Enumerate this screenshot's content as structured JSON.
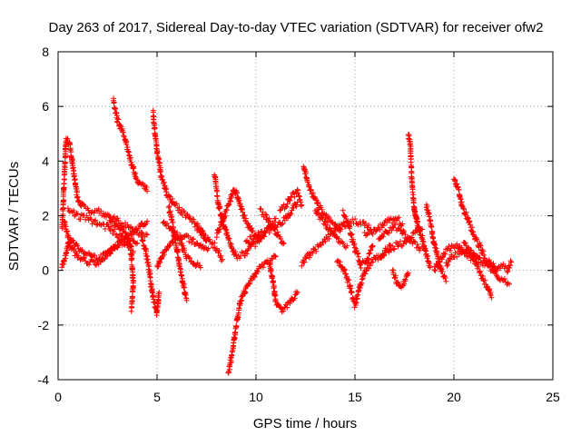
{
  "chart_data": {
    "type": "scatter",
    "title": "Day 263 of 2017, Sidereal Day-to-day VTEC variation (SDTVAR) for receiver ofw2",
    "xlabel": "GPS time / hours",
    "ylabel": "SDTVAR / TECUs",
    "xlim": [
      0,
      25
    ],
    "ylim": [
      -4,
      8
    ],
    "xticks": [
      "0",
      "5",
      "10",
      "15",
      "20",
      "25"
    ],
    "yticks": [
      "-4",
      "-2",
      "0",
      "2",
      "4",
      "6",
      "8"
    ],
    "grid": true,
    "marker": "+",
    "color": "#ff0000",
    "tracks": [
      [
        [
          0.2,
          1.6
        ],
        [
          0.4,
          4.8
        ],
        [
          0.6,
          4.6
        ],
        [
          0.8,
          3.5
        ],
        [
          1.0,
          2.6
        ],
        [
          1.3,
          2.3
        ],
        [
          1.6,
          2.2
        ],
        [
          2.0,
          2.2
        ],
        [
          2.5,
          2.0
        ],
        [
          3.0,
          1.8
        ],
        [
          3.5,
          1.6
        ],
        [
          4.0,
          1.4
        ],
        [
          4.5,
          1.3
        ]
      ],
      [
        [
          0.2,
          0.1
        ],
        [
          0.4,
          0.6
        ],
        [
          0.6,
          1.2
        ],
        [
          0.8,
          1.0
        ],
        [
          1.2,
          0.7
        ],
        [
          1.6,
          0.6
        ],
        [
          2.0,
          0.4
        ],
        [
          2.5,
          0.6
        ],
        [
          3.0,
          0.9
        ],
        [
          3.5,
          1.2
        ],
        [
          4.0,
          1.5
        ],
        [
          4.5,
          1.8
        ]
      ],
      [
        [
          0.3,
          1.8
        ],
        [
          0.6,
          0.9
        ],
        [
          1.0,
          0.5
        ],
        [
          1.5,
          0.3
        ],
        [
          2.0,
          0.3
        ],
        [
          2.5,
          0.6
        ],
        [
          3.0,
          1.0
        ],
        [
          3.5,
          1.0
        ],
        [
          3.8,
          0.7
        ]
      ],
      [
        [
          0.5,
          2.2
        ],
        [
          1.0,
          2.0
        ],
        [
          1.5,
          1.9
        ],
        [
          2.0,
          1.7
        ],
        [
          2.5,
          1.6
        ],
        [
          3.0,
          1.3
        ],
        [
          3.5,
          1.2
        ],
        [
          4.0,
          1.0
        ]
      ],
      [
        [
          2.8,
          6.2
        ],
        [
          3.0,
          5.5
        ],
        [
          3.3,
          5.0
        ],
        [
          3.6,
          4.2
        ],
        [
          3.9,
          3.5
        ],
        [
          4.1,
          3.2
        ],
        [
          4.4,
          3.0
        ],
        [
          4.5,
          2.9
        ]
      ],
      [
        [
          2.6,
          1.9
        ],
        [
          3.0,
          1.6
        ],
        [
          3.5,
          1.2
        ],
        [
          3.7,
          0.6
        ],
        [
          3.8,
          -0.5
        ],
        [
          3.7,
          -1.5
        ]
      ],
      [
        [
          4.2,
          1.2
        ],
        [
          4.4,
          0.8
        ],
        [
          4.6,
          0.0
        ],
        [
          4.8,
          -1.0
        ],
        [
          5.0,
          -1.6
        ],
        [
          5.1,
          -0.8
        ]
      ],
      [
        [
          4.8,
          5.8
        ],
        [
          4.9,
          5.0
        ],
        [
          5.0,
          4.4
        ],
        [
          5.2,
          3.5
        ],
        [
          5.5,
          2.8
        ],
        [
          5.9,
          2.4
        ],
        [
          6.3,
          2.1
        ],
        [
          6.8,
          1.8
        ],
        [
          7.2,
          1.5
        ],
        [
          7.5,
          1.1
        ]
      ],
      [
        [
          5.0,
          0.1
        ],
        [
          5.3,
          0.6
        ],
        [
          5.7,
          1.0
        ],
        [
          6.0,
          1.3
        ],
        [
          6.4,
          1.2
        ],
        [
          6.8,
          1.1
        ],
        [
          7.2,
          0.9
        ],
        [
          7.6,
          0.8
        ]
      ],
      [
        [
          5.3,
          1.8
        ],
        [
          5.7,
          1.5
        ],
        [
          6.2,
          1.0
        ],
        [
          6.5,
          0.5
        ],
        [
          6.8,
          0.3
        ],
        [
          7.2,
          0.1
        ]
      ],
      [
        [
          5.6,
          2.3
        ],
        [
          5.8,
          1.6
        ],
        [
          6.0,
          0.8
        ],
        [
          6.2,
          -0.1
        ],
        [
          6.4,
          -0.8
        ],
        [
          6.5,
          -1.1
        ]
      ],
      [
        [
          7.0,
          1.6
        ],
        [
          7.3,
          1.3
        ],
        [
          7.6,
          1.1
        ],
        [
          7.9,
          0.9
        ],
        [
          8.3,
          0.4
        ]
      ],
      [
        [
          7.9,
          3.6
        ],
        [
          8.1,
          2.4
        ],
        [
          8.4,
          1.6
        ],
        [
          8.7,
          1.0
        ],
        [
          9.0,
          0.5
        ],
        [
          9.4,
          0.6
        ],
        [
          9.8,
          0.9
        ],
        [
          10.2,
          1.1
        ],
        [
          10.5,
          1.4
        ],
        [
          10.8,
          1.7
        ],
        [
          11.0,
          1.9
        ]
      ],
      [
        [
          8.0,
          1.3
        ],
        [
          8.3,
          1.8
        ],
        [
          8.6,
          2.4
        ],
        [
          8.9,
          3.0
        ],
        [
          9.2,
          2.4
        ],
        [
          9.5,
          1.8
        ],
        [
          9.8,
          1.4
        ],
        [
          10.2,
          1.2
        ]
      ],
      [
        [
          8.6,
          -3.8
        ],
        [
          8.8,
          -3.0
        ],
        [
          9.0,
          -2.0
        ],
        [
          9.2,
          -1.2
        ],
        [
          9.5,
          -0.6
        ],
        [
          9.8,
          -0.3
        ],
        [
          10.2,
          0.1
        ],
        [
          10.6,
          0.3
        ],
        [
          11.0,
          0.5
        ]
      ],
      [
        [
          9.5,
          1.0
        ],
        [
          10.0,
          1.3
        ],
        [
          10.5,
          1.4
        ],
        [
          11.0,
          1.6
        ],
        [
          11.5,
          1.9
        ],
        [
          11.8,
          2.2
        ],
        [
          12.1,
          2.5
        ]
      ],
      [
        [
          10.2,
          2.2
        ],
        [
          10.5,
          2.0
        ],
        [
          10.8,
          1.6
        ],
        [
          11.1,
          1.3
        ],
        [
          11.4,
          1.0
        ]
      ],
      [
        [
          10.7,
          0.2
        ],
        [
          10.9,
          -0.6
        ],
        [
          11.0,
          -1.2
        ],
        [
          11.3,
          -1.5
        ],
        [
          11.7,
          -1.2
        ],
        [
          12.1,
          -0.8
        ]
      ],
      [
        [
          11.2,
          2.2
        ],
        [
          11.5,
          2.4
        ],
        [
          11.8,
          2.7
        ],
        [
          12.1,
          2.9
        ],
        [
          12.3,
          2.4
        ]
      ],
      [
        [
          12.4,
          3.9
        ],
        [
          12.6,
          3.2
        ],
        [
          12.9,
          2.7
        ],
        [
          13.2,
          2.3
        ],
        [
          13.5,
          2.0
        ],
        [
          13.9,
          1.7
        ],
        [
          14.3,
          1.5
        ]
      ],
      [
        [
          12.3,
          0.2
        ],
        [
          12.6,
          0.5
        ],
        [
          12.9,
          0.7
        ],
        [
          13.2,
          0.9
        ],
        [
          13.5,
          1.1
        ],
        [
          13.8,
          1.3
        ],
        [
          14.2,
          1.6
        ],
        [
          14.6,
          1.7
        ],
        [
          15.0,
          1.8
        ],
        [
          15.5,
          1.7
        ],
        [
          15.8,
          1.5
        ]
      ],
      [
        [
          13.0,
          2.2
        ],
        [
          13.3,
          1.9
        ],
        [
          13.6,
          1.6
        ],
        [
          14.0,
          1.2
        ],
        [
          14.3,
          1.0
        ],
        [
          14.6,
          0.9
        ]
      ],
      [
        [
          14.1,
          0.4
        ],
        [
          14.4,
          0.1
        ],
        [
          14.7,
          -0.5
        ],
        [
          15.0,
          -1.3
        ],
        [
          15.3,
          -0.4
        ],
        [
          15.6,
          0.1
        ],
        [
          16.0,
          0.4
        ],
        [
          16.4,
          0.6
        ],
        [
          16.8,
          0.9
        ]
      ],
      [
        [
          14.4,
          2.1
        ],
        [
          14.7,
          1.6
        ],
        [
          15.0,
          0.8
        ],
        [
          15.3,
          0.2
        ],
        [
          15.6,
          0.4
        ],
        [
          15.9,
          0.9
        ]
      ],
      [
        [
          15.5,
          1.3
        ],
        [
          15.9,
          1.4
        ],
        [
          16.3,
          1.6
        ],
        [
          16.7,
          1.8
        ],
        [
          17.1,
          1.9
        ],
        [
          17.4,
          1.7
        ]
      ],
      [
        [
          16.2,
          1.1
        ],
        [
          16.6,
          1.4
        ],
        [
          17.0,
          1.6
        ],
        [
          17.3,
          1.5
        ],
        [
          17.6,
          1.2
        ],
        [
          17.9,
          1.0
        ],
        [
          18.3,
          0.8
        ]
      ],
      [
        [
          16.3,
          0.5
        ],
        [
          16.6,
          0.7
        ],
        [
          17.0,
          0.9
        ],
        [
          17.4,
          1.0
        ],
        [
          17.8,
          1.2
        ],
        [
          18.2,
          1.5
        ]
      ],
      [
        [
          16.9,
          0.0
        ],
        [
          17.1,
          -0.4
        ],
        [
          17.3,
          -0.6
        ],
        [
          17.5,
          -0.4
        ],
        [
          17.7,
          -0.1
        ]
      ],
      [
        [
          17.7,
          5.0
        ],
        [
          17.8,
          4.6
        ],
        [
          17.9,
          3.0
        ],
        [
          18.0,
          2.2
        ],
        [
          18.2,
          1.6
        ],
        [
          18.4,
          1.5
        ]
      ],
      [
        [
          18.0,
          2.2
        ],
        [
          18.2,
          1.6
        ],
        [
          18.4,
          1.2
        ],
        [
          18.6,
          0.6
        ],
        [
          18.8,
          0.1
        ]
      ],
      [
        [
          18.6,
          2.4
        ],
        [
          18.8,
          1.8
        ],
        [
          19.0,
          1.0
        ],
        [
          19.2,
          0.4
        ],
        [
          19.4,
          -0.1
        ],
        [
          19.6,
          -0.4
        ]
      ],
      [
        [
          19.0,
          0.0
        ],
        [
          19.3,
          0.4
        ],
        [
          19.6,
          0.7
        ],
        [
          19.9,
          0.9
        ],
        [
          20.2,
          0.9
        ],
        [
          20.5,
          0.7
        ],
        [
          20.8,
          0.5
        ],
        [
          21.1,
          0.3
        ]
      ],
      [
        [
          19.6,
          0.2
        ],
        [
          19.9,
          0.5
        ],
        [
          20.2,
          0.6
        ],
        [
          20.6,
          0.7
        ],
        [
          21.0,
          0.6
        ],
        [
          21.4,
          0.3
        ],
        [
          21.8,
          0.1
        ],
        [
          22.2,
          0.0
        ]
      ],
      [
        [
          20.0,
          3.4
        ],
        [
          20.2,
          3.0
        ],
        [
          20.4,
          2.4
        ],
        [
          20.7,
          1.9
        ],
        [
          21.0,
          1.3
        ],
        [
          21.3,
          0.9
        ],
        [
          21.6,
          0.4
        ],
        [
          21.9,
          0.1
        ],
        [
          22.2,
          -0.2
        ],
        [
          22.5,
          -0.4
        ],
        [
          22.8,
          -0.5
        ]
      ],
      [
        [
          20.5,
          1.0
        ],
        [
          20.8,
          0.7
        ],
        [
          21.1,
          0.3
        ],
        [
          21.4,
          -0.2
        ],
        [
          21.7,
          -0.6
        ],
        [
          21.9,
          -1.0
        ]
      ],
      [
        [
          21.8,
          0.3
        ],
        [
          22.1,
          0.1
        ],
        [
          22.4,
          0.2
        ],
        [
          22.7,
          0.0
        ],
        [
          22.9,
          0.3
        ]
      ]
    ]
  }
}
